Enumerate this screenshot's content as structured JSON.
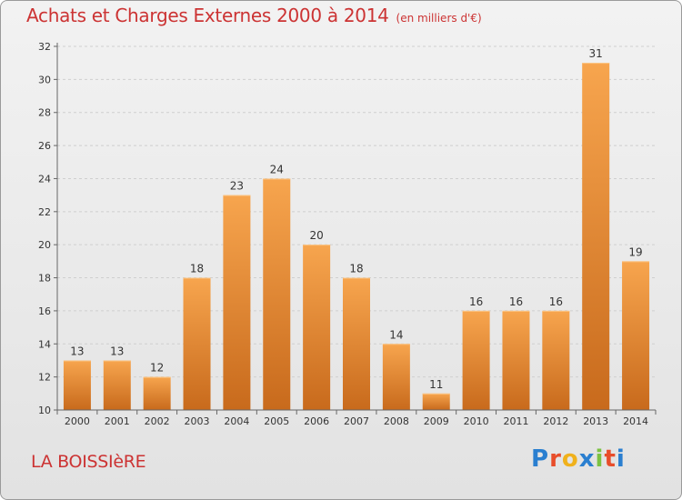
{
  "header": {
    "title": "Achats et Charges Externes 2000 à 2014",
    "subtitle": "(en milliers d'€)"
  },
  "footer": {
    "commune": "LA BOISSIèRE",
    "logo_text": "Proxiti"
  },
  "colors": {
    "title": "#cc3333",
    "bar_light": "#f7a54e",
    "bar_dark": "#c86a1c",
    "logo": [
      "#2a7fd0",
      "#e84d2a",
      "#f0b11c",
      "#2a7fd0",
      "#7cc242",
      "#e84d2a",
      "#2a7fd0"
    ]
  },
  "chart_data": {
    "type": "bar",
    "categories": [
      "2000",
      "2001",
      "2002",
      "2003",
      "2004",
      "2005",
      "2006",
      "2007",
      "2008",
      "2009",
      "2010",
      "2011",
      "2012",
      "2013",
      "2014"
    ],
    "values": [
      13,
      13,
      12,
      18,
      23,
      24,
      20,
      18,
      14,
      11,
      16,
      16,
      16,
      31,
      19
    ],
    "title": "Achats et Charges Externes 2000 à 2014",
    "subtitle": "(en milliers d'€)",
    "xlabel": "",
    "ylabel": "",
    "ylim": [
      10,
      32
    ],
    "yticks": [
      10,
      12,
      14,
      16,
      18,
      20,
      22,
      24,
      26,
      28,
      30,
      32
    ],
    "grid": true,
    "data_labels": true
  }
}
